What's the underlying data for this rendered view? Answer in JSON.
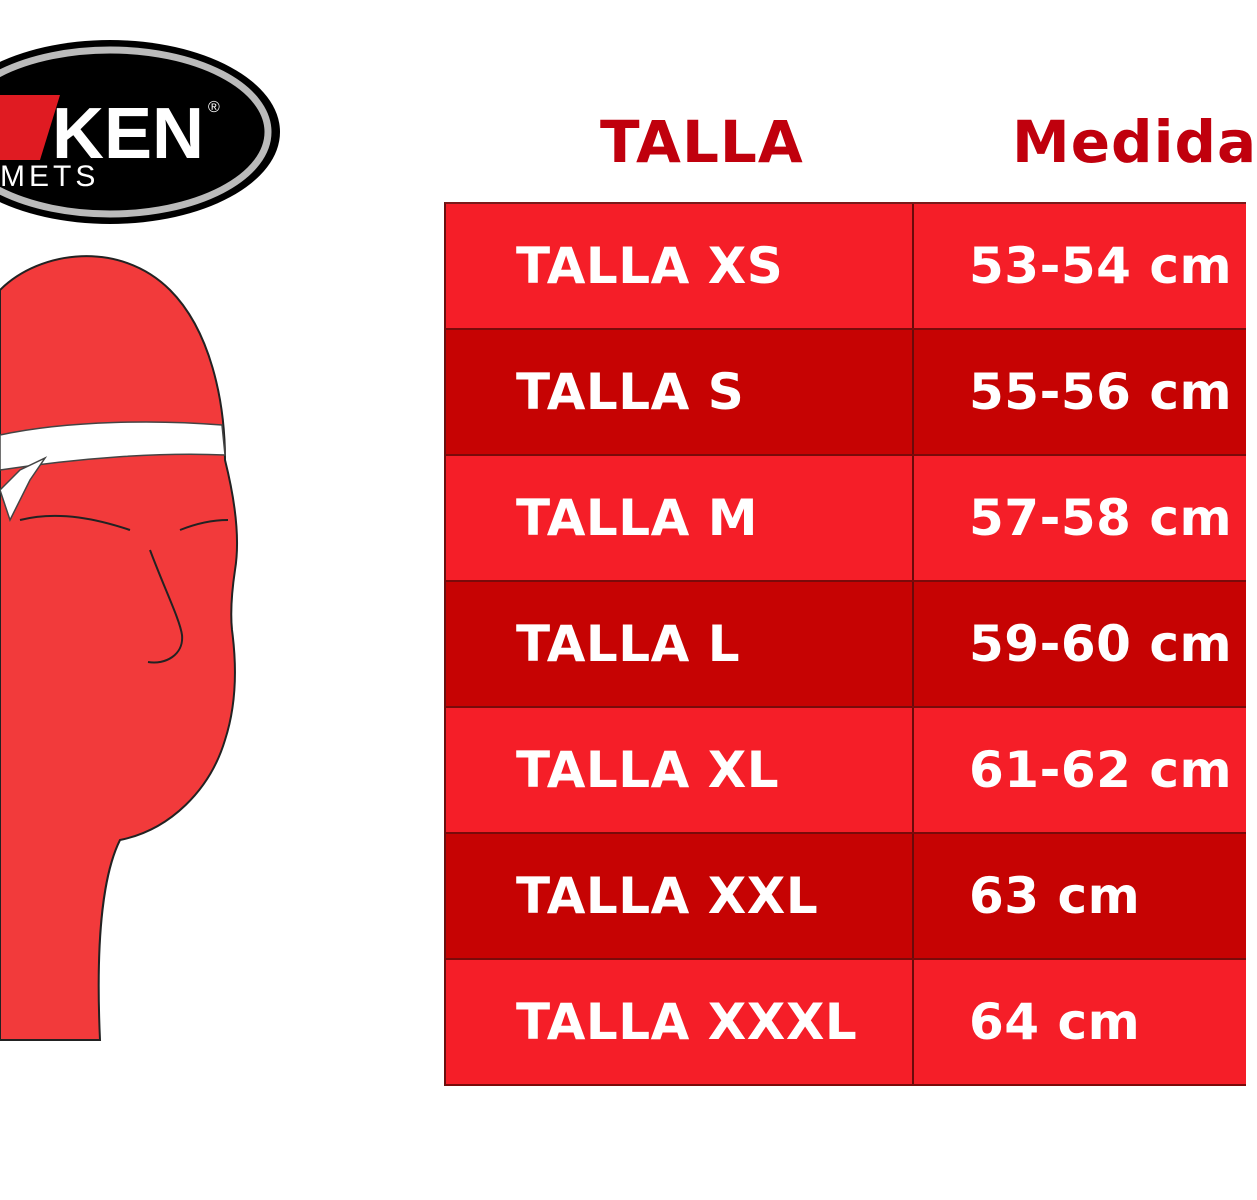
{
  "logo": {
    "text": "KEN",
    "subtext": "METS",
    "registered": "®"
  },
  "table": {
    "headers": {
      "size": "TALLA",
      "measure": "Medida"
    },
    "rows": [
      {
        "size": "TALLA XS",
        "measure": "53-54 cm"
      },
      {
        "size": "TALLA S",
        "measure": "55-56 cm"
      },
      {
        "size": "TALLA M",
        "measure": "57-58 cm"
      },
      {
        "size": "TALLA L",
        "measure": "59-60 cm"
      },
      {
        "size": "TALLA XL",
        "measure": "61-62 cm"
      },
      {
        "size": "TALLA XXL",
        "measure": "63 cm"
      },
      {
        "size": "TALLA XXXL",
        "measure": "64 cm"
      }
    ]
  },
  "colors": {
    "header_text": "#c0000d",
    "row_light": "#f51e28",
    "row_dark": "#c60303",
    "head_fill": "#f23a3b"
  }
}
